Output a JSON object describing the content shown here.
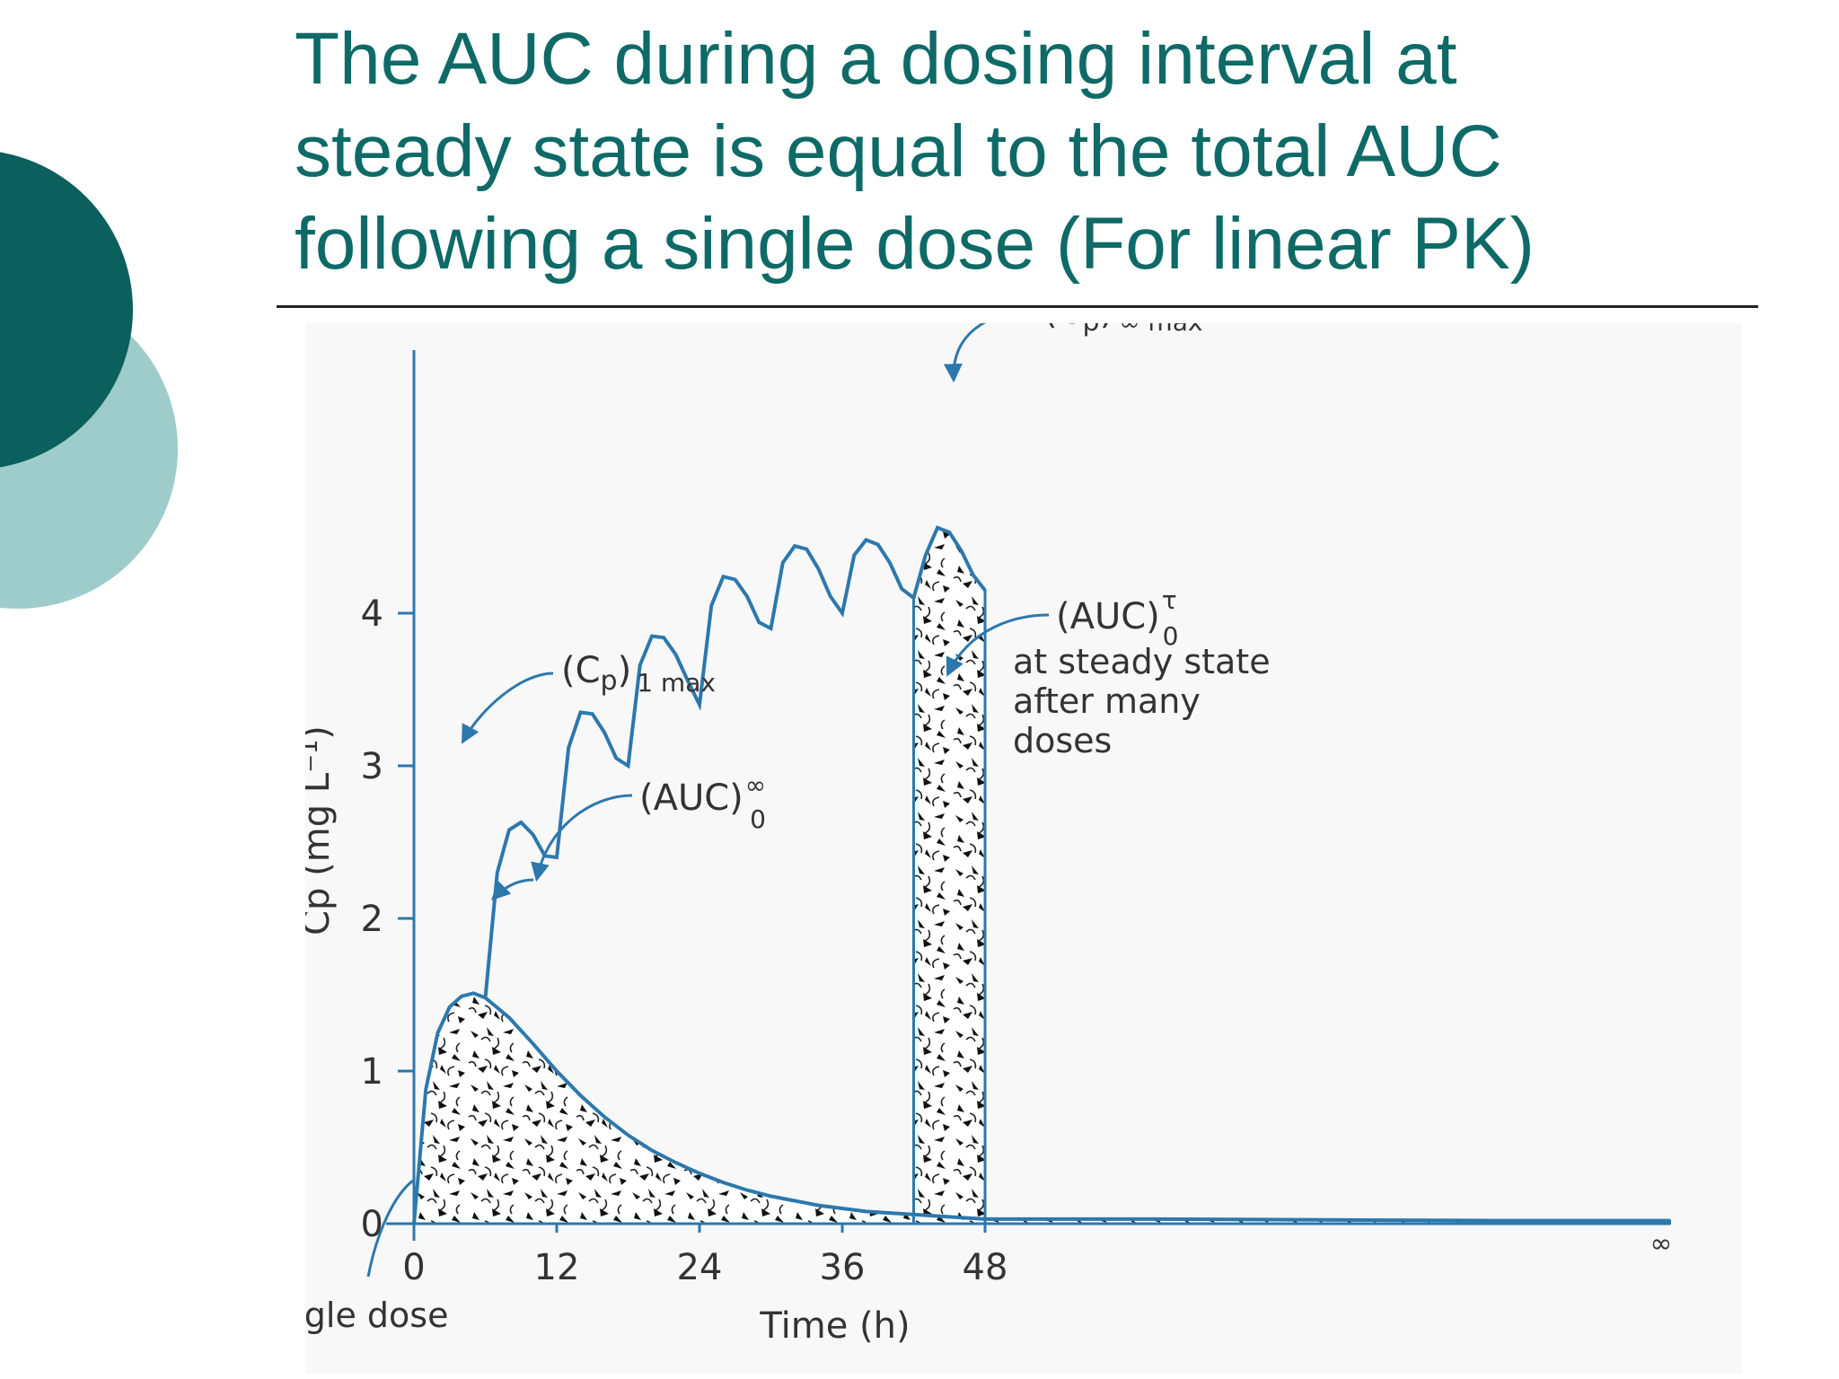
{
  "slide": {
    "title_lines": [
      "The AUC during a dosing interval at",
      "steady state is equal to the total AUC",
      "following a single dose (For linear PK)"
    ]
  },
  "colors": {
    "title": "#0e6a66",
    "circle_dark": "#0b5f5c",
    "circle_light": "#9dcccb",
    "curve": "#2c78ad"
  },
  "chart_data": {
    "type": "line",
    "title": "",
    "xlabel": "Time (h)",
    "ylabel": "Cp (mg L⁻¹)",
    "xlim": [
      0,
      56
    ],
    "ylim": [
      0,
      4.6
    ],
    "grid": false,
    "x_ticks": [
      "0",
      "12",
      "24",
      "36",
      "48"
    ],
    "x_tick_values": [
      0,
      12,
      24,
      36,
      48
    ],
    "x_inf_label": "∞",
    "y_ticks": [
      "0",
      "1",
      "2",
      "3",
      "4"
    ],
    "y_tick_values": [
      0,
      1,
      2,
      3,
      4
    ],
    "dosing_interval_h": 6,
    "series": [
      {
        "x": [
          0,
          1,
          2,
          3,
          4,
          5,
          6,
          8,
          10,
          12,
          14,
          16,
          18,
          20,
          22,
          24,
          26,
          28,
          30,
          32,
          34,
          36,
          38,
          40,
          42,
          44,
          46,
          48,
          50,
          54,
          56
        ],
        "y": [
          0,
          0.88,
          1.25,
          1.42,
          1.49,
          1.51,
          1.48,
          1.35,
          1.18,
          1.0,
          0.84,
          0.7,
          0.58,
          0.48,
          0.4,
          0.33,
          0.27,
          0.22,
          0.18,
          0.15,
          0.12,
          0.1,
          0.08,
          0.07,
          0.06,
          0.05,
          0.04,
          0.03,
          0.03,
          0.02,
          0.02
        ]
      },
      {
        "x": [
          6,
          7,
          8,
          9,
          10,
          11,
          12,
          13,
          14,
          15,
          16,
          17,
          18,
          19,
          20,
          21,
          22,
          23,
          24,
          25,
          26,
          27,
          28,
          29,
          30,
          31,
          32,
          33,
          34,
          35,
          36,
          37,
          38,
          39,
          40,
          41,
          42,
          43,
          44,
          45,
          46,
          47,
          48
        ],
        "y": [
          1.48,
          2.3,
          2.58,
          2.63,
          2.55,
          2.41,
          2.4,
          3.12,
          3.35,
          3.34,
          3.22,
          3.05,
          3.0,
          3.66,
          3.85,
          3.84,
          3.73,
          3.56,
          3.4,
          4.05,
          4.24,
          4.22,
          4.11,
          3.94,
          3.9,
          4.33,
          4.44,
          4.42,
          4.29,
          4.11,
          4.0,
          4.38,
          4.48,
          4.45,
          4.33,
          4.16,
          4.1,
          4.38,
          4.56,
          4.53,
          4.41,
          4.25,
          4.15
        ]
      }
    ],
    "shaded_regions": [
      {
        "name": "(AUC)_0^∞",
        "x_from": 0,
        "x_to": 56
      },
      {
        "name": "(AUC)_0^τ",
        "x_from": 42,
        "x_to": 48
      }
    ],
    "annotations": [
      {
        "main": "(C",
        "sub": "p",
        "close": ")",
        "sub2": "∞ max"
      },
      {
        "main": "(C",
        "sub": "p",
        "close": ")",
        "sub2": "1 max"
      },
      {
        "main": "(AUC)",
        "sup": "∞",
        "sub": "0"
      },
      {
        "main": "(AUC)",
        "sup": "τ",
        "sub": "0"
      },
      {
        "lines": [
          "at steady state",
          "after many",
          "doses"
        ]
      },
      {
        "text": "Single dose"
      }
    ]
  }
}
